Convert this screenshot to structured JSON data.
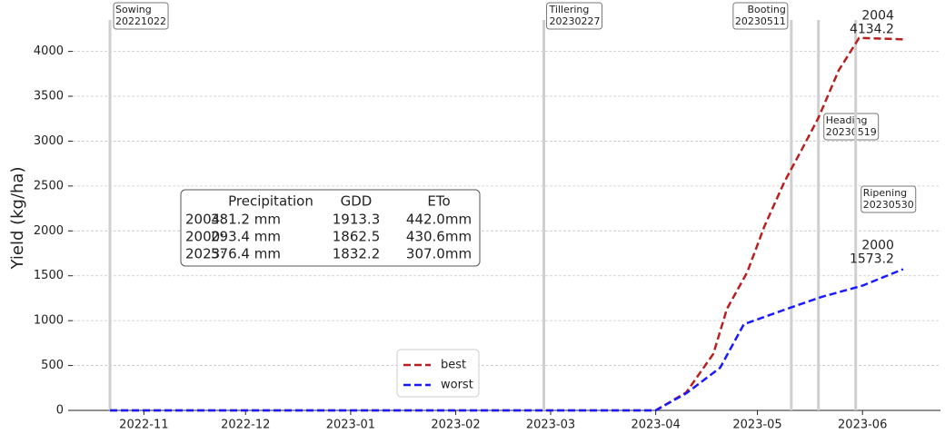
{
  "chart_data": {
    "type": "line",
    "y_label": "Yield (kg/ha)",
    "xlim": [
      "2022-10-11",
      "2023-06-24"
    ],
    "xticks": [
      {
        "value": "2022-11-01",
        "label": "2022-11"
      },
      {
        "value": "2022-12-01",
        "label": "2022-12"
      },
      {
        "value": "2023-01-01",
        "label": "2023-01"
      },
      {
        "value": "2023-02-01",
        "label": "2023-02"
      },
      {
        "value": "2023-03-01",
        "label": "2023-03"
      },
      {
        "value": "2023-04-01",
        "label": "2023-04"
      },
      {
        "value": "2023-05-01",
        "label": "2023-05"
      },
      {
        "value": "2023-06-01",
        "label": "2023-06"
      }
    ],
    "ylim": [
      0,
      4350
    ],
    "yticks": [
      0,
      500,
      1000,
      1500,
      2000,
      2500,
      3000,
      3500,
      4000
    ],
    "grid": true,
    "legend": "lower center",
    "series": [
      {
        "name": "best",
        "color": "#b82020",
        "end_label": "2004",
        "x": [
          "2022-10-22",
          "2023-04-01",
          "2023-04-10",
          "2023-04-18",
          "2023-04-22",
          "2023-04-28",
          "2023-05-03",
          "2023-05-09",
          "2023-05-14",
          "2023-05-19",
          "2023-05-25",
          "2023-05-31",
          "2023-06-13"
        ],
        "values": [
          0,
          0,
          200,
          630,
          1130,
          1540,
          2045,
          2550,
          2900,
          3260,
          3790,
          4150,
          4134.2
        ]
      },
      {
        "name": "worst",
        "color": "#1a1aff",
        "end_label": "2000",
        "x": [
          "2022-10-22",
          "2023-04-01",
          "2023-04-10",
          "2023-04-20",
          "2023-04-27",
          "2023-05-10",
          "2023-05-20",
          "2023-06-01",
          "2023-06-13"
        ],
        "values": [
          0,
          0,
          190,
          475,
          960,
          1135,
          1265,
          1390,
          1573.2
        ]
      }
    ],
    "stages": [
      {
        "name": "Sowing",
        "date": "20221022"
      },
      {
        "name": "Tillering",
        "date": "20230227"
      },
      {
        "name": "Booting",
        "date": "20230511"
      },
      {
        "name": "Heading",
        "date": "20230519"
      },
      {
        "name": "Ripening",
        "date": "20230530"
      }
    ],
    "table": {
      "header": [
        "Precipitation",
        "GDD",
        "ETo"
      ],
      "rows": [
        [
          "2004:",
          "381.2 mm",
          "1913.3",
          "442.0mm"
        ],
        [
          "2000:",
          "293.4 mm",
          "1862.5",
          "430.6mm"
        ],
        [
          "2023:",
          "576.4 mm",
          "1832.2",
          "307.0mm"
        ]
      ]
    }
  }
}
